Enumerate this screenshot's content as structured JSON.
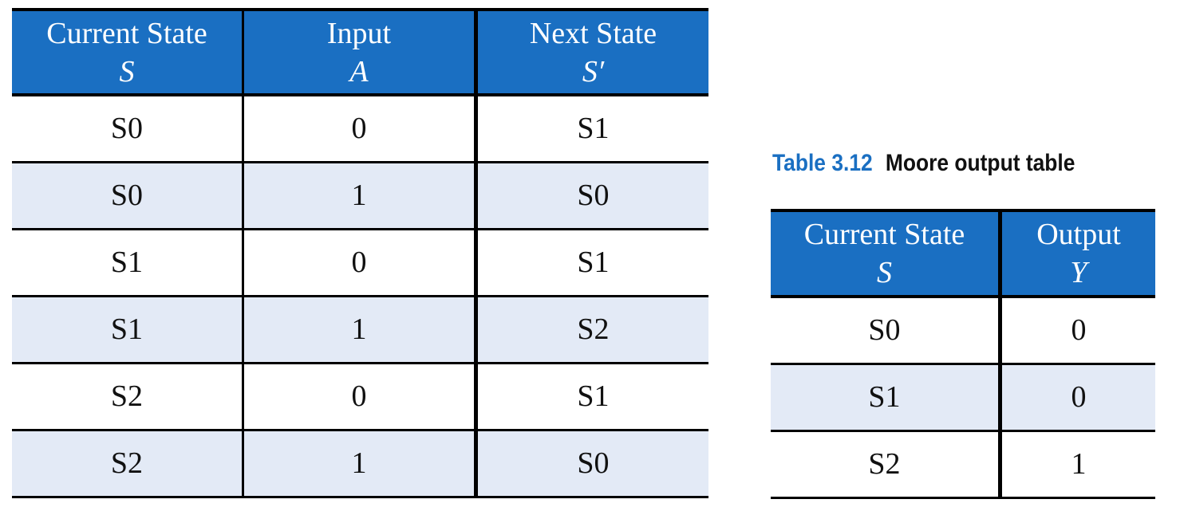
{
  "transition_table": {
    "headers": [
      {
        "label": "Current State",
        "symbol": "S"
      },
      {
        "label": "Input",
        "symbol": "A"
      },
      {
        "label": "Next State",
        "symbol": "S′"
      }
    ],
    "rows": [
      [
        "S0",
        "0",
        "S1"
      ],
      [
        "S0",
        "1",
        "S0"
      ],
      [
        "S1",
        "0",
        "S1"
      ],
      [
        "S1",
        "1",
        "S2"
      ],
      [
        "S2",
        "0",
        "S1"
      ],
      [
        "S2",
        "1",
        "S0"
      ]
    ]
  },
  "output_table": {
    "caption_number": "Table 3.12",
    "caption_title": "Moore output table",
    "headers": [
      {
        "label": "Current State",
        "symbol": "S"
      },
      {
        "label": "Output",
        "symbol": "Y"
      }
    ],
    "rows": [
      [
        "S0",
        "0"
      ],
      [
        "S1",
        "0"
      ],
      [
        "S2",
        "1"
      ]
    ]
  },
  "colors": {
    "header_blue": "#1a6fc2",
    "alt_row": "#e3eaf6"
  }
}
